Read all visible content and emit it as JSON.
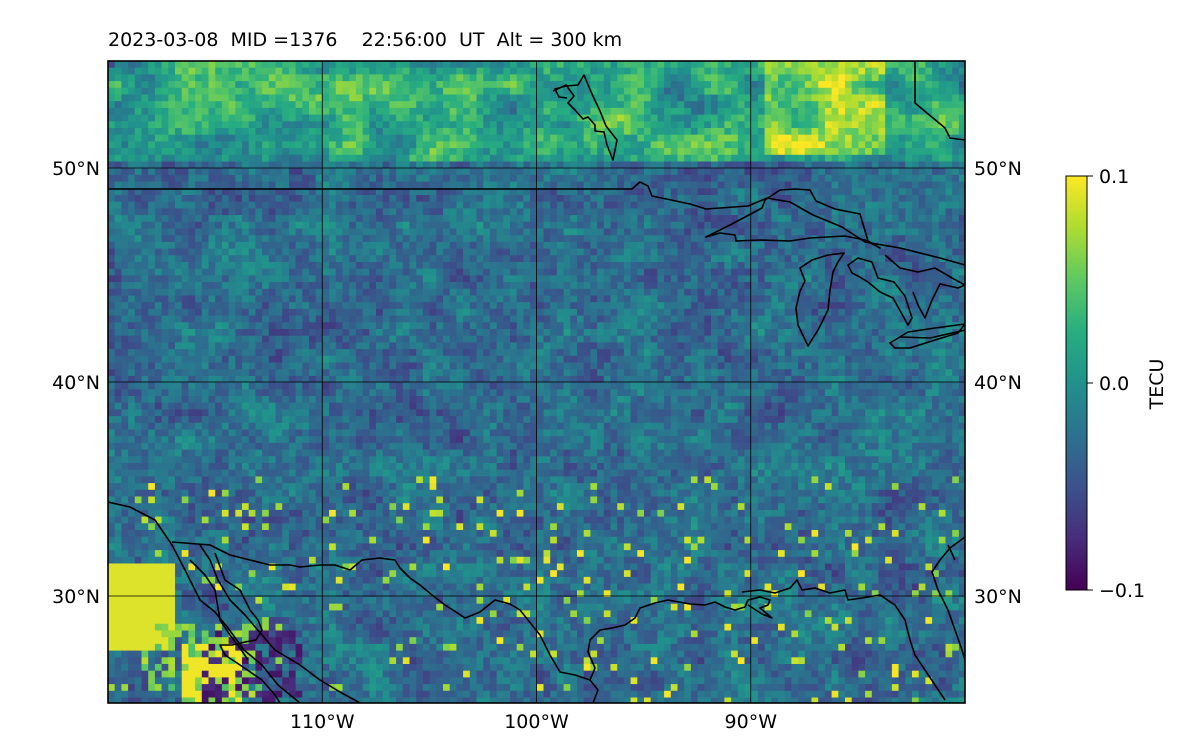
{
  "title": "2023-03-08  MID =1376    22:56:00  UT  Alt = 300 km",
  "map": {
    "lon_range": [
      -120,
      -80
    ],
    "lat_range": [
      25,
      55
    ],
    "lat_ticks": [
      {
        "value": 50,
        "label": "50°N"
      },
      {
        "value": 40,
        "label": "40°N"
      },
      {
        "value": 30,
        "label": "30°N"
      }
    ],
    "lon_ticks": [
      {
        "value": -110,
        "label": "110°W"
      },
      {
        "value": -100,
        "label": "100°W"
      },
      {
        "value": -90,
        "label": "90°W"
      }
    ],
    "grid": true,
    "gridline_color": "#000000",
    "coastline_color": "#000000"
  },
  "colorbar": {
    "label": "TECU",
    "min": -0.1,
    "max": 0.1,
    "colormap": "viridis",
    "ticks": [
      {
        "value": 0.1,
        "label": "0.1"
      },
      {
        "value": 0.0,
        "label": "0.0"
      },
      {
        "value": -0.1,
        "label": "−0.1"
      }
    ]
  }
}
